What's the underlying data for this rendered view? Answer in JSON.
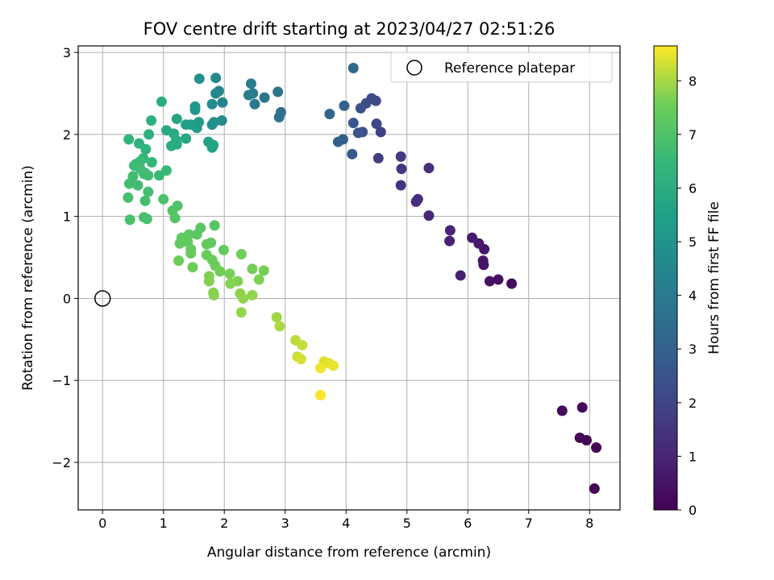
{
  "chart_data": {
    "type": "scatter",
    "title": "FOV centre drift starting at 2023/04/27 02:51:26",
    "xlabel": "Angular distance from reference (arcmin)",
    "ylabel": "Rotation from reference (arcmin)",
    "xlim": [
      -0.4,
      8.5
    ],
    "ylim": [
      -2.58,
      3.08
    ],
    "xticks": [
      0,
      1,
      2,
      3,
      4,
      5,
      6,
      7,
      8
    ],
    "yticks": [
      -2,
      -1,
      0,
      1,
      2,
      3
    ],
    "xtick_labels": [
      "0",
      "1",
      "2",
      "3",
      "4",
      "5",
      "6",
      "7",
      "8"
    ],
    "ytick_labels": [
      "−2",
      "−1",
      "0",
      "1",
      "2",
      "3"
    ],
    "grid": true,
    "colormap": "viridis",
    "colorbar": {
      "label": "Hours from first FF file",
      "range": [
        0,
        8.65
      ],
      "ticks": [
        0,
        1,
        2,
        3,
        4,
        5,
        6,
        7,
        8
      ],
      "tick_labels": [
        "0",
        "1",
        "2",
        "3",
        "4",
        "5",
        "6",
        "7",
        "8"
      ]
    },
    "legend": {
      "label": "Reference platepar",
      "placement": "top-right"
    },
    "reference_point": {
      "x": 0,
      "y": 0
    },
    "points": [
      [
        8.08,
        -2.32,
        0.02
      ],
      [
        8.11,
        -1.82,
        0.06
      ],
      [
        7.95,
        -1.73,
        0.1
      ],
      [
        7.84,
        -1.7,
        0.14
      ],
      [
        7.88,
        -1.33,
        0.2
      ],
      [
        7.55,
        -1.37,
        0.25
      ],
      [
        6.72,
        0.18,
        0.32
      ],
      [
        6.5,
        0.23,
        0.38
      ],
      [
        6.36,
        0.21,
        0.45
      ],
      [
        6.26,
        0.41,
        0.5
      ],
      [
        6.25,
        0.46,
        0.55
      ],
      [
        6.27,
        0.6,
        0.62
      ],
      [
        6.18,
        0.67,
        0.68
      ],
      [
        6.07,
        0.74,
        0.75
      ],
      [
        5.88,
        0.28,
        0.85
      ],
      [
        5.7,
        0.7,
        0.92
      ],
      [
        5.71,
        0.83,
        1.0
      ],
      [
        5.36,
        1.01,
        1.1
      ],
      [
        5.18,
        1.21,
        1.2
      ],
      [
        5.15,
        1.18,
        1.28
      ],
      [
        5.36,
        1.59,
        1.35
      ],
      [
        4.9,
        1.38,
        1.45
      ],
      [
        4.91,
        1.58,
        1.55
      ],
      [
        4.9,
        1.73,
        1.65
      ],
      [
        4.53,
        1.71,
        1.8
      ],
      [
        4.57,
        2.03,
        1.92
      ],
      [
        4.5,
        2.13,
        2.02
      ],
      [
        4.49,
        2.41,
        2.1
      ],
      [
        4.42,
        2.44,
        2.18
      ],
      [
        4.33,
        2.38,
        2.28
      ],
      [
        4.27,
        2.03,
        2.38
      ],
      [
        4.24,
        2.32,
        2.45
      ],
      [
        4.2,
        2.02,
        2.55
      ],
      [
        4.12,
        2.14,
        2.65
      ],
      [
        4.1,
        1.76,
        2.75
      ],
      [
        3.95,
        1.94,
        2.85
      ],
      [
        3.87,
        1.91,
        2.95
      ],
      [
        3.97,
        2.35,
        3.05
      ],
      [
        3.73,
        2.25,
        3.15
      ],
      [
        4.12,
        2.81,
        3.25
      ],
      [
        2.93,
        2.27,
        3.5
      ],
      [
        2.9,
        2.21,
        3.6
      ],
      [
        2.88,
        2.52,
        3.7
      ],
      [
        2.66,
        2.45,
        3.8
      ],
      [
        2.5,
        2.37,
        3.9
      ],
      [
        2.47,
        2.5,
        4.0
      ],
      [
        2.44,
        2.62,
        4.1
      ],
      [
        2.4,
        2.48,
        4.2
      ],
      [
        1.97,
        2.39,
        4.35
      ],
      [
        1.91,
        2.53,
        4.45
      ],
      [
        1.86,
        2.5,
        4.55
      ],
      [
        1.86,
        2.69,
        4.62
      ],
      [
        1.8,
        2.37,
        4.7
      ],
      [
        1.96,
        2.17,
        4.78
      ],
      [
        1.83,
        2.15,
        4.85
      ],
      [
        1.8,
        2.12,
        4.92
      ],
      [
        1.59,
        2.68,
        5.0
      ],
      [
        1.52,
        2.3,
        5.1
      ],
      [
        1.52,
        2.34,
        5.18
      ],
      [
        1.58,
        2.15,
        5.25
      ],
      [
        1.55,
        2.08,
        5.32
      ],
      [
        1.45,
        2.12,
        5.4
      ],
      [
        1.37,
        2.12,
        5.48
      ],
      [
        1.74,
        1.91,
        5.55
      ],
      [
        1.8,
        1.84,
        5.62
      ],
      [
        1.82,
        1.87,
        5.68
      ],
      [
        1.22,
        2.19,
        5.72
      ],
      [
        1.37,
        1.95,
        5.78
      ],
      [
        1.05,
        2.05,
        5.85
      ],
      [
        1.17,
        2.01,
        5.9
      ],
      [
        1.21,
        1.93,
        5.95
      ],
      [
        1.22,
        1.88,
        6.0
      ],
      [
        1.13,
        1.86,
        6.05
      ],
      [
        0.97,
        2.4,
        6.1
      ],
      [
        0.8,
        2.17,
        6.15
      ],
      [
        0.76,
        2.0,
        6.2
      ],
      [
        0.6,
        1.89,
        6.25
      ],
      [
        0.71,
        1.82,
        6.3
      ],
      [
        0.43,
        1.94,
        6.35
      ],
      [
        0.67,
        1.71,
        6.4
      ],
      [
        0.81,
        1.66,
        6.45
      ],
      [
        0.7,
        1.53,
        6.5
      ],
      [
        1.05,
        1.56,
        6.55
      ],
      [
        0.93,
        1.5,
        6.58
      ],
      [
        0.62,
        1.67,
        6.6
      ],
      [
        0.55,
        1.64,
        6.62
      ],
      [
        0.52,
        1.62,
        6.64
      ],
      [
        0.62,
        1.58,
        6.66
      ],
      [
        0.5,
        1.49,
        6.68
      ],
      [
        0.68,
        1.52,
        6.7
      ],
      [
        0.75,
        1.5,
        6.72
      ],
      [
        0.58,
        1.38,
        6.74
      ],
      [
        0.44,
        1.4,
        6.76
      ],
      [
        0.75,
        1.3,
        6.78
      ],
      [
        0.7,
        1.19,
        6.8
      ],
      [
        0.42,
        1.23,
        6.82
      ],
      [
        0.68,
        0.99,
        6.84
      ],
      [
        0.73,
        0.97,
        6.86
      ],
      [
        0.45,
        0.96,
        6.88
      ],
      [
        1.0,
        1.21,
        6.9
      ],
      [
        1.23,
        1.13,
        7.0
      ],
      [
        1.15,
        1.07,
        7.05
      ],
      [
        1.19,
        0.98,
        7.1
      ],
      [
        1.84,
        0.89,
        7.15
      ],
      [
        1.61,
        0.86,
        7.2
      ],
      [
        1.55,
        0.78,
        7.25
      ],
      [
        1.42,
        0.78,
        7.28
      ],
      [
        1.3,
        0.74,
        7.3
      ],
      [
        1.4,
        0.69,
        7.32
      ],
      [
        1.27,
        0.67,
        7.34
      ],
      [
        1.78,
        0.68,
        7.36
      ],
      [
        1.71,
        0.66,
        7.38
      ],
      [
        1.99,
        0.59,
        7.4
      ],
      [
        1.45,
        0.6,
        7.42
      ],
      [
        1.45,
        0.55,
        7.44
      ],
      [
        1.71,
        0.53,
        7.46
      ],
      [
        1.8,
        0.47,
        7.48
      ],
      [
        1.25,
        0.46,
        7.5
      ],
      [
        1.85,
        0.4,
        7.52
      ],
      [
        1.48,
        0.38,
        7.54
      ],
      [
        1.93,
        0.33,
        7.56
      ],
      [
        2.28,
        0.54,
        7.58
      ],
      [
        2.46,
        0.36,
        7.6
      ],
      [
        2.65,
        0.34,
        7.62
      ],
      [
        2.09,
        0.3,
        7.64
      ],
      [
        1.75,
        0.27,
        7.66
      ],
      [
        2.57,
        0.23,
        7.68
      ],
      [
        2.22,
        0.21,
        7.7
      ],
      [
        1.75,
        0.21,
        7.72
      ],
      [
        2.1,
        0.18,
        7.74
      ],
      [
        1.82,
        0.07,
        7.76
      ],
      [
        1.83,
        0.04,
        7.78
      ],
      [
        2.26,
        0.06,
        7.8
      ],
      [
        2.46,
        0.04,
        7.82
      ],
      [
        2.31,
        0.0,
        7.84
      ],
      [
        2.28,
        -0.17,
        7.86
      ],
      [
        2.86,
        -0.23,
        7.95
      ],
      [
        2.91,
        -0.34,
        8.05
      ],
      [
        3.17,
        -0.51,
        8.15
      ],
      [
        3.28,
        -0.57,
        8.22
      ],
      [
        3.2,
        -0.71,
        8.28
      ],
      [
        3.26,
        -0.74,
        8.35
      ],
      [
        3.64,
        -0.77,
        8.4
      ],
      [
        3.72,
        -0.79,
        8.45
      ],
      [
        3.79,
        -0.82,
        8.5
      ],
      [
        3.58,
        -0.85,
        8.55
      ],
      [
        3.58,
        -1.18,
        8.6
      ]
    ]
  }
}
